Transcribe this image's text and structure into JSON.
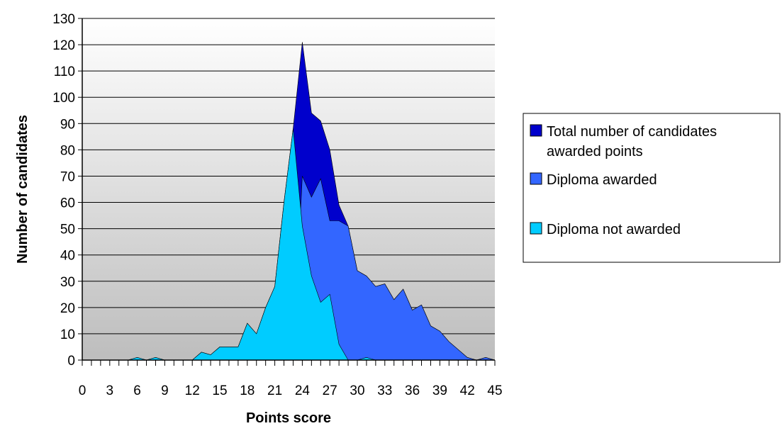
{
  "chart_data": {
    "type": "area",
    "xlabel": "Points score",
    "ylabel": "Number of candidates",
    "xlim": [
      0,
      45
    ],
    "ylim": [
      0,
      130
    ],
    "x_tick_labels": [
      "0",
      "3",
      "6",
      "9",
      "12",
      "15",
      "18",
      "21",
      "24",
      "27",
      "30",
      "33",
      "36",
      "39",
      "42",
      "45"
    ],
    "y_tick_labels": [
      "0",
      "10",
      "20",
      "30",
      "40",
      "50",
      "60",
      "70",
      "80",
      "90",
      "100",
      "110",
      "120",
      "130"
    ],
    "grid": true,
    "stacked": false,
    "legend_position": "right",
    "x": [
      0,
      1,
      2,
      3,
      4,
      5,
      6,
      7,
      8,
      9,
      10,
      11,
      12,
      13,
      14,
      15,
      16,
      17,
      18,
      19,
      20,
      21,
      22,
      23,
      24,
      25,
      26,
      27,
      28,
      29,
      30,
      31,
      32,
      33,
      34,
      35,
      36,
      37,
      38,
      39,
      40,
      41,
      42,
      43,
      44,
      45
    ],
    "series": [
      {
        "name": "Total number of candidates awarded points",
        "color": "#0000cc",
        "values": [
          0,
          0,
          0,
          0,
          0,
          0,
          1,
          0,
          1,
          0,
          0,
          0,
          0,
          3,
          2,
          5,
          5,
          5,
          14,
          10,
          20,
          28,
          60,
          88,
          121,
          94,
          91,
          80,
          59,
          51,
          34,
          32,
          28,
          29,
          23,
          27,
          19,
          21,
          13,
          11,
          7,
          4,
          1,
          0,
          1,
          0
        ]
      },
      {
        "name": "Diploma awarded",
        "color": "#3366ff",
        "values": [
          0,
          0,
          0,
          0,
          0,
          0,
          0,
          0,
          0,
          0,
          0,
          0,
          0,
          0,
          0,
          0,
          0,
          0,
          0,
          0,
          0,
          0,
          0,
          0,
          70,
          62,
          69,
          53,
          53,
          51,
          34,
          32,
          28,
          29,
          23,
          27,
          19,
          21,
          13,
          11,
          7,
          4,
          1,
          0,
          1,
          0
        ]
      },
      {
        "name": "Diploma not awarded",
        "color": "#00ccff",
        "values": [
          0,
          0,
          0,
          0,
          0,
          0,
          1,
          0,
          1,
          0,
          0,
          0,
          0,
          3,
          2,
          5,
          5,
          5,
          14,
          10,
          20,
          28,
          60,
          88,
          51,
          32,
          22,
          25,
          6,
          0,
          0,
          1,
          0,
          0,
          0,
          0,
          0,
          0,
          0,
          0,
          0,
          0,
          0,
          0,
          0,
          0
        ]
      }
    ]
  },
  "legend": {
    "items": [
      {
        "lines": [
          "Total number of candidates",
          "awarded points"
        ],
        "color": "#0000cc"
      },
      {
        "lines": [
          "Diploma awarded"
        ],
        "color": "#3366ff"
      },
      {
        "lines": [
          "Diploma not awarded"
        ],
        "color": "#00ccff"
      }
    ]
  }
}
